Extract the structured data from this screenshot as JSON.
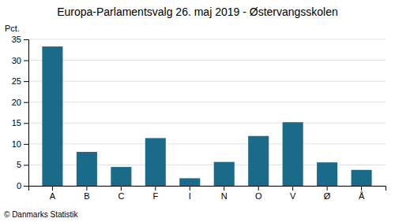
{
  "chart_data": {
    "type": "bar",
    "title": "Europa-Parlamentsvalg 26. maj 2019 - Østervangsskolen",
    "ylabel": "Pct.",
    "footer": "© Danmarks Statistik",
    "categories": [
      "A",
      "B",
      "C",
      "F",
      "I",
      "N",
      "O",
      "V",
      "Ø",
      "Å"
    ],
    "values": [
      33.3,
      8.1,
      4.5,
      11.4,
      1.8,
      5.7,
      11.9,
      15.2,
      5.6,
      3.8
    ],
    "color": "#1a6b8a",
    "ylim": [
      0,
      35
    ],
    "yticks": [
      0,
      5,
      10,
      15,
      20,
      25,
      30,
      35
    ],
    "grid": true
  }
}
